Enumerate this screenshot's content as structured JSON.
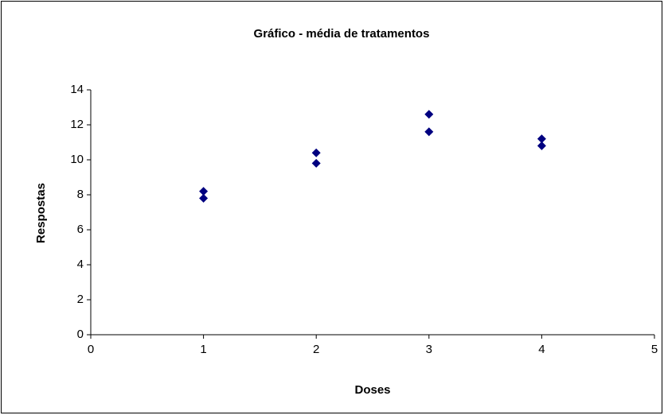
{
  "chart_data": {
    "type": "scatter",
    "title": "Gráfico - média de tratamentos",
    "x_label": "Doses",
    "y_label": "Respostas",
    "series": [
      {
        "color": "#000080",
        "x": [
          1,
          1,
          2,
          2,
          3,
          3,
          4,
          4
        ],
        "values": [
          8.2,
          7.8,
          10.4,
          9.8,
          12.6,
          11.6,
          11.2,
          10.8
        ]
      }
    ],
    "xlim": [
      0,
      5
    ],
    "xticks": [
      0,
      1,
      2,
      3,
      4,
      5
    ],
    "ylim": [
      0,
      14
    ],
    "yticks": [
      0,
      2,
      4,
      6,
      8,
      10,
      12,
      14
    ],
    "grid": false
  }
}
